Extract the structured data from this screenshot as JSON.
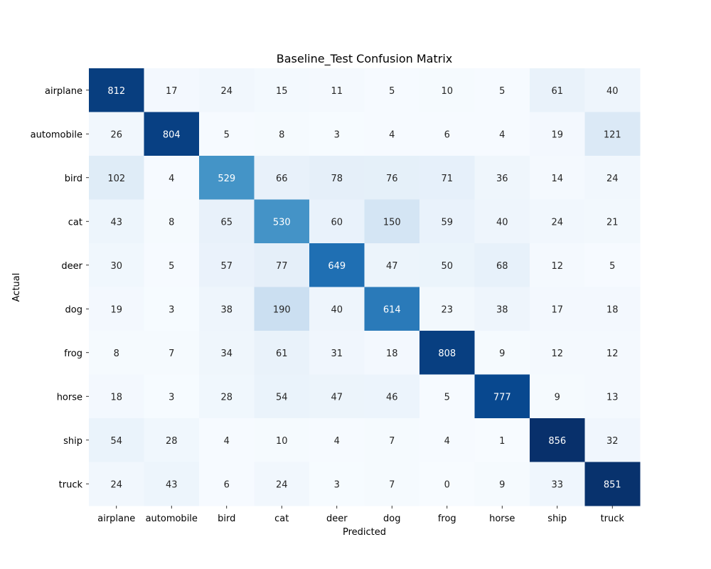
{
  "chart_data": {
    "type": "heatmap",
    "title": "Baseline_Test Confusion Matrix",
    "xlabel": "Predicted",
    "ylabel": "Actual",
    "x_categories": [
      "airplane",
      "automobile",
      "bird",
      "cat",
      "deer",
      "dog",
      "frog",
      "horse",
      "ship",
      "truck"
    ],
    "y_categories": [
      "airplane",
      "automobile",
      "bird",
      "cat",
      "deer",
      "dog",
      "frog",
      "horse",
      "ship",
      "truck"
    ],
    "values": [
      [
        812,
        17,
        24,
        15,
        11,
        5,
        10,
        5,
        61,
        40
      ],
      [
        26,
        804,
        5,
        8,
        3,
        4,
        6,
        4,
        19,
        121
      ],
      [
        102,
        4,
        529,
        66,
        78,
        76,
        71,
        36,
        14,
        24
      ],
      [
        43,
        8,
        65,
        530,
        60,
        150,
        59,
        40,
        24,
        21
      ],
      [
        30,
        5,
        57,
        77,
        649,
        47,
        50,
        68,
        12,
        5
      ],
      [
        19,
        3,
        38,
        190,
        40,
        614,
        23,
        38,
        17,
        18
      ],
      [
        8,
        7,
        34,
        61,
        31,
        18,
        808,
        9,
        12,
        12
      ],
      [
        18,
        3,
        28,
        54,
        47,
        46,
        5,
        777,
        9,
        13
      ],
      [
        54,
        28,
        4,
        10,
        4,
        7,
        4,
        1,
        856,
        32
      ],
      [
        24,
        43,
        6,
        24,
        3,
        7,
        0,
        9,
        33,
        851
      ]
    ],
    "colormap": "Blues",
    "value_range": [
      0,
      856
    ],
    "annotations": true,
    "colorbar": false,
    "grid": false
  }
}
